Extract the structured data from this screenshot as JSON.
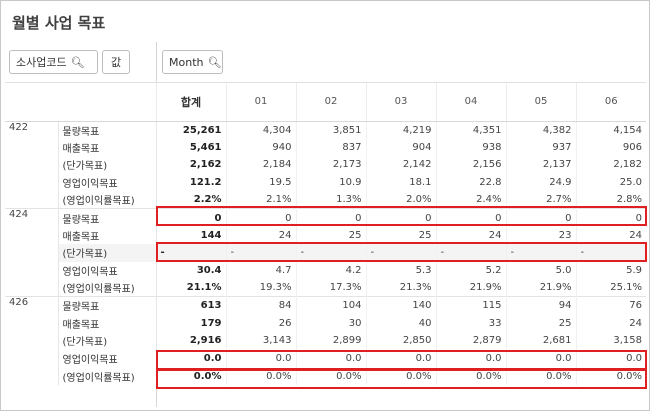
{
  "title": "월별 사업 목표",
  "dimension_chip": {
    "label": "소사업코드",
    "icon": "search-icon"
  },
  "value_chip": {
    "label": "값"
  },
  "month_chip": {
    "label": "Month",
    "icon": "search-icon"
  },
  "columns": [
    "합계",
    "01",
    "02",
    "03",
    "04",
    "05",
    "06"
  ],
  "groups": [
    {
      "code": "422",
      "rows": [
        {
          "metric": "물량목표",
          "values": [
            "25,261",
            "4,304",
            "3,851",
            "4,219",
            "4,351",
            "4,382",
            "4,154"
          ]
        },
        {
          "metric": "매출목표",
          "values": [
            "5,461",
            "940",
            "837",
            "904",
            "938",
            "937",
            "906"
          ]
        },
        {
          "metric": "(단가목표)",
          "values": [
            "2,162",
            "2,184",
            "2,173",
            "2,142",
            "2,156",
            "2,137",
            "2,182"
          ]
        },
        {
          "metric": "영업이익목표",
          "values": [
            "121.2",
            "19.5",
            "10.9",
            "18.1",
            "22.8",
            "24.9",
            "25.0"
          ]
        },
        {
          "metric": "(영업이익률목표)",
          "values": [
            "2.2%",
            "2.1%",
            "1.3%",
            "2.0%",
            "2.4%",
            "2.7%",
            "2.8%"
          ]
        }
      ]
    },
    {
      "code": "424",
      "rows": [
        {
          "metric": "물량목표",
          "values": [
            "0",
            "0",
            "0",
            "0",
            "0",
            "0",
            "0"
          ]
        },
        {
          "metric": "매출목표",
          "values": [
            "144",
            "24",
            "25",
            "25",
            "24",
            "23",
            "24"
          ]
        },
        {
          "metric": "(단가목표)",
          "values": [
            "-",
            "-",
            "-",
            "-",
            "-",
            "-",
            "-"
          ]
        },
        {
          "metric": "영업이익목표",
          "values": [
            "30.4",
            "4.7",
            "4.2",
            "5.3",
            "5.2",
            "5.0",
            "5.9"
          ]
        },
        {
          "metric": "(영업이익률목표)",
          "values": [
            "21.1%",
            "19.3%",
            "17.3%",
            "21.3%",
            "21.9%",
            "21.9%",
            "25.1%"
          ]
        }
      ]
    },
    {
      "code": "426",
      "rows": [
        {
          "metric": "물량목표",
          "values": [
            "613",
            "84",
            "104",
            "140",
            "115",
            "94",
            "76"
          ]
        },
        {
          "metric": "매출목표",
          "values": [
            "179",
            "26",
            "30",
            "40",
            "33",
            "25",
            "24"
          ]
        },
        {
          "metric": "(단가목표)",
          "values": [
            "2,916",
            "3,143",
            "2,899",
            "2,850",
            "2,879",
            "2,681",
            "3,158"
          ]
        },
        {
          "metric": "영업이익목표",
          "values": [
            "0.0",
            "0.0",
            "0.0",
            "0.0",
            "0.0",
            "0.0",
            "0.0"
          ]
        },
        {
          "metric": "(영업이익률목표)",
          "values": [
            "0.0%",
            "0.0%",
            "0.0%",
            "0.0%",
            "0.0%",
            "0.0%",
            "0.0%"
          ]
        }
      ]
    }
  ],
  "highlight_color": "#e02020",
  "shaded_row_color": "#f4f4f4"
}
